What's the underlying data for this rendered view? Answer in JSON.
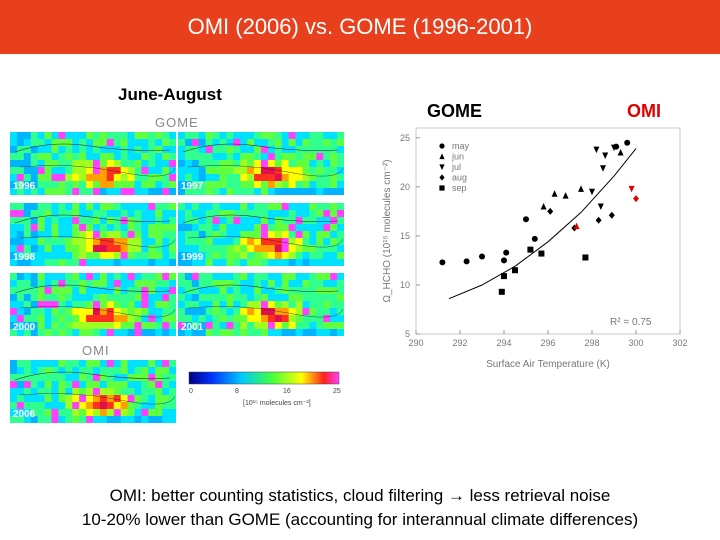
{
  "title": "OMI (2006) vs. GOME (1996-2001)",
  "season_label": "June-August",
  "left_panel": {
    "gome_header": "GOME",
    "omi_header": "OMI",
    "maps": [
      {
        "year": "1996"
      },
      {
        "year": "1997"
      },
      {
        "year": "1998"
      },
      {
        "year": "1999"
      },
      {
        "year": "2000"
      },
      {
        "year": "2001"
      },
      {
        "year": "2006"
      }
    ],
    "colorbar": {
      "ticks": [
        "0",
        "8",
        "16",
        "25"
      ],
      "unit": "[10¹⁵ molecules cm⁻²]"
    }
  },
  "labels": {
    "gome": "GOME",
    "omi": "OMI"
  },
  "chart_data": {
    "type": "scatter",
    "xlabel": "Surface Air Temperature (K)",
    "ylabel": "Ω_HCHO (10¹⁵ molecules cm⁻²)",
    "xlim": [
      290,
      302
    ],
    "ylim": [
      5,
      26
    ],
    "xticks": [
      "290",
      "292",
      "294",
      "296",
      "298",
      "300",
      "302"
    ],
    "yticks": [
      "5",
      "10",
      "15",
      "20",
      "25"
    ],
    "annotation": "R² = 0.75",
    "legend": [
      "may",
      "jun",
      "jul",
      "aug",
      "sep"
    ],
    "series": [
      {
        "name": "may",
        "marker": "circle",
        "color": "#000000",
        "points": [
          [
            291.2,
            12.3
          ],
          [
            292.3,
            12.4
          ],
          [
            293.0,
            12.9
          ],
          [
            294.0,
            12.5
          ],
          [
            294.1,
            13.3
          ],
          [
            295.0,
            16.7
          ],
          [
            295.4,
            14.7
          ],
          [
            299.1,
            24.1
          ],
          [
            299.6,
            24.5
          ]
        ]
      },
      {
        "name": "jun",
        "marker": "triangle-up",
        "color": "#000000",
        "points": [
          [
            295.8,
            18.0
          ],
          [
            296.3,
            19.3
          ],
          [
            296.8,
            19.1
          ],
          [
            297.5,
            19.8
          ],
          [
            299.3,
            23.5
          ]
        ]
      },
      {
        "name": "jul",
        "marker": "triangle-down",
        "color": "#000000",
        "points": [
          [
            298.2,
            23.8
          ],
          [
            298.6,
            23.2
          ],
          [
            299.0,
            24.0
          ],
          [
            298.5,
            21.9
          ],
          [
            298.0,
            19.5
          ],
          [
            298.4,
            18.0
          ]
        ]
      },
      {
        "name": "aug",
        "marker": "diamond",
        "color": "#000000",
        "points": [
          [
            296.1,
            17.5
          ],
          [
            297.2,
            15.8
          ],
          [
            298.3,
            16.6
          ],
          [
            298.9,
            17.1
          ]
        ]
      },
      {
        "name": "sep",
        "marker": "square",
        "color": "#000000",
        "points": [
          [
            293.9,
            9.3
          ],
          [
            294.0,
            10.9
          ],
          [
            294.5,
            11.5
          ],
          [
            295.2,
            13.6
          ],
          [
            295.7,
            13.2
          ],
          [
            297.7,
            12.8
          ]
        ]
      },
      {
        "name": "OMI",
        "marker": "triangle-down",
        "color": "#e00000",
        "points": [
          [
            299.8,
            19.8
          ]
        ]
      },
      {
        "name": "OMI",
        "marker": "triangle-up",
        "color": "#e00000",
        "points": [
          [
            297.3,
            16.0
          ]
        ]
      },
      {
        "name": "OMI",
        "marker": "diamond",
        "color": "#e00000",
        "points": [
          [
            300.0,
            18.8
          ]
        ]
      }
    ],
    "fit_curve": [
      [
        291.5,
        8.6
      ],
      [
        293,
        10.0
      ],
      [
        294.5,
        11.9
      ],
      [
        296,
        14.4
      ],
      [
        297.5,
        17.4
      ],
      [
        299,
        21.1
      ],
      [
        300,
        23.9
      ]
    ]
  },
  "footer": {
    "line1": "OMI: better counting statistics, cloud filtering → less retrieval noise",
    "line2": "10-20% lower than GOME (accounting for interannual climate differences)"
  }
}
